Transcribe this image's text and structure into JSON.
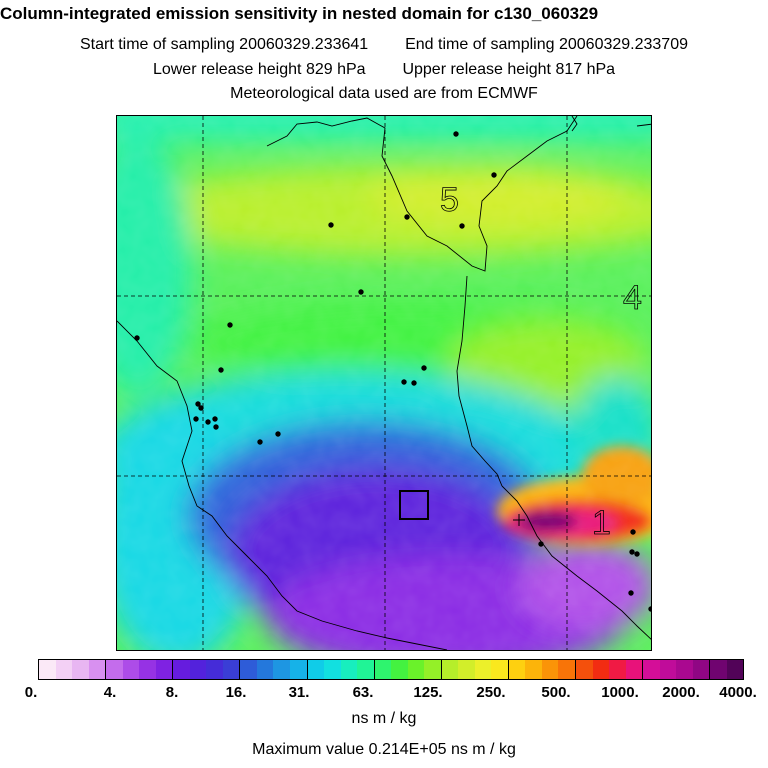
{
  "header": {
    "title": "Column-integrated emission sensitivity in nested domain for c130_060329",
    "start_label": "Start time of sampling",
    "start_value": "20060329.233641",
    "end_label": "End time of sampling",
    "end_value": "20060329.233709",
    "lower_label": "Lower release height",
    "lower_value": "829 hPa",
    "upper_label": "Upper release height",
    "upper_value": "817 hPa",
    "met_line": "Meteorological data used are from ECMWF"
  },
  "map": {
    "region_numbers": [
      "5",
      "4",
      "1"
    ]
  },
  "colorbar": {
    "tick_labels": [
      "0.",
      "4.",
      "8.",
      "16.",
      "31.",
      "63.",
      "125.",
      "250.",
      "500.",
      "1000.",
      "2000.",
      "4000."
    ],
    "colors": [
      "#fbe9f7",
      "#f3d0f5",
      "#e8b6f2",
      "#d890f0",
      "#c46cec",
      "#ad4ce8",
      "#9632e4",
      "#7f22e2",
      "#661cde",
      "#5322dc",
      "#452cd8",
      "#3a3ed6",
      "#2e5cd8",
      "#2478dc",
      "#1e96e2",
      "#16b2e8",
      "#10cce8",
      "#12e0e0",
      "#18eebe",
      "#20f496",
      "#2ef46e",
      "#44f240",
      "#6af22a",
      "#94f028",
      "#b6ee2a",
      "#d2ee2a",
      "#ecf02a",
      "#fae81e",
      "#fed010",
      "#fcb40a",
      "#fa9408",
      "#f87408",
      "#f4500c",
      "#f22c12",
      "#f01a44",
      "#e8127a",
      "#d40e98",
      "#c00c9a",
      "#aa0890",
      "#900684",
      "#700470",
      "#520358"
    ],
    "unit": "ns m / kg"
  },
  "max_value": {
    "label": "Maximum value",
    "value": "0.214E+05 ns m / kg"
  }
}
